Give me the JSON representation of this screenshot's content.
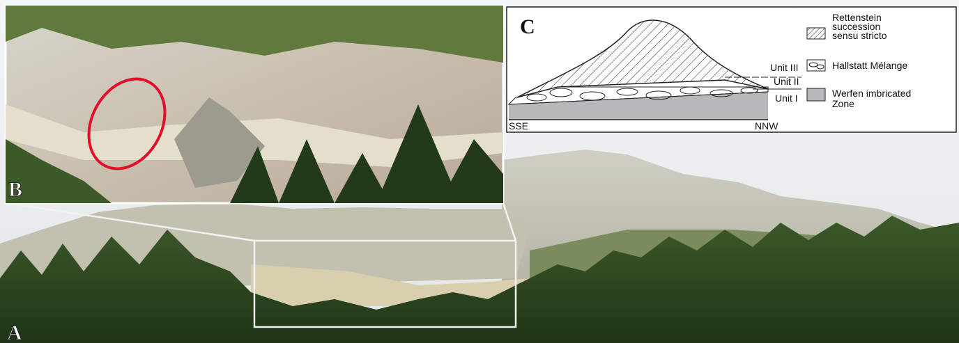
{
  "panel_a": {
    "label": "A"
  },
  "panel_b": {
    "label": "B"
  },
  "panel_c": {
    "label": "C",
    "legend": [
      {
        "lines": [
          "Rettenstein",
          "succession",
          "sensu stricto"
        ]
      },
      {
        "lines": [
          "Hallstatt Mélange"
        ]
      },
      {
        "lines": [
          "Werfen imbricated",
          "Zone"
        ]
      }
    ],
    "units": [
      "Unit III",
      "Unit II",
      "Unit I"
    ],
    "directions": [
      "SSE",
      "NNW"
    ]
  }
}
